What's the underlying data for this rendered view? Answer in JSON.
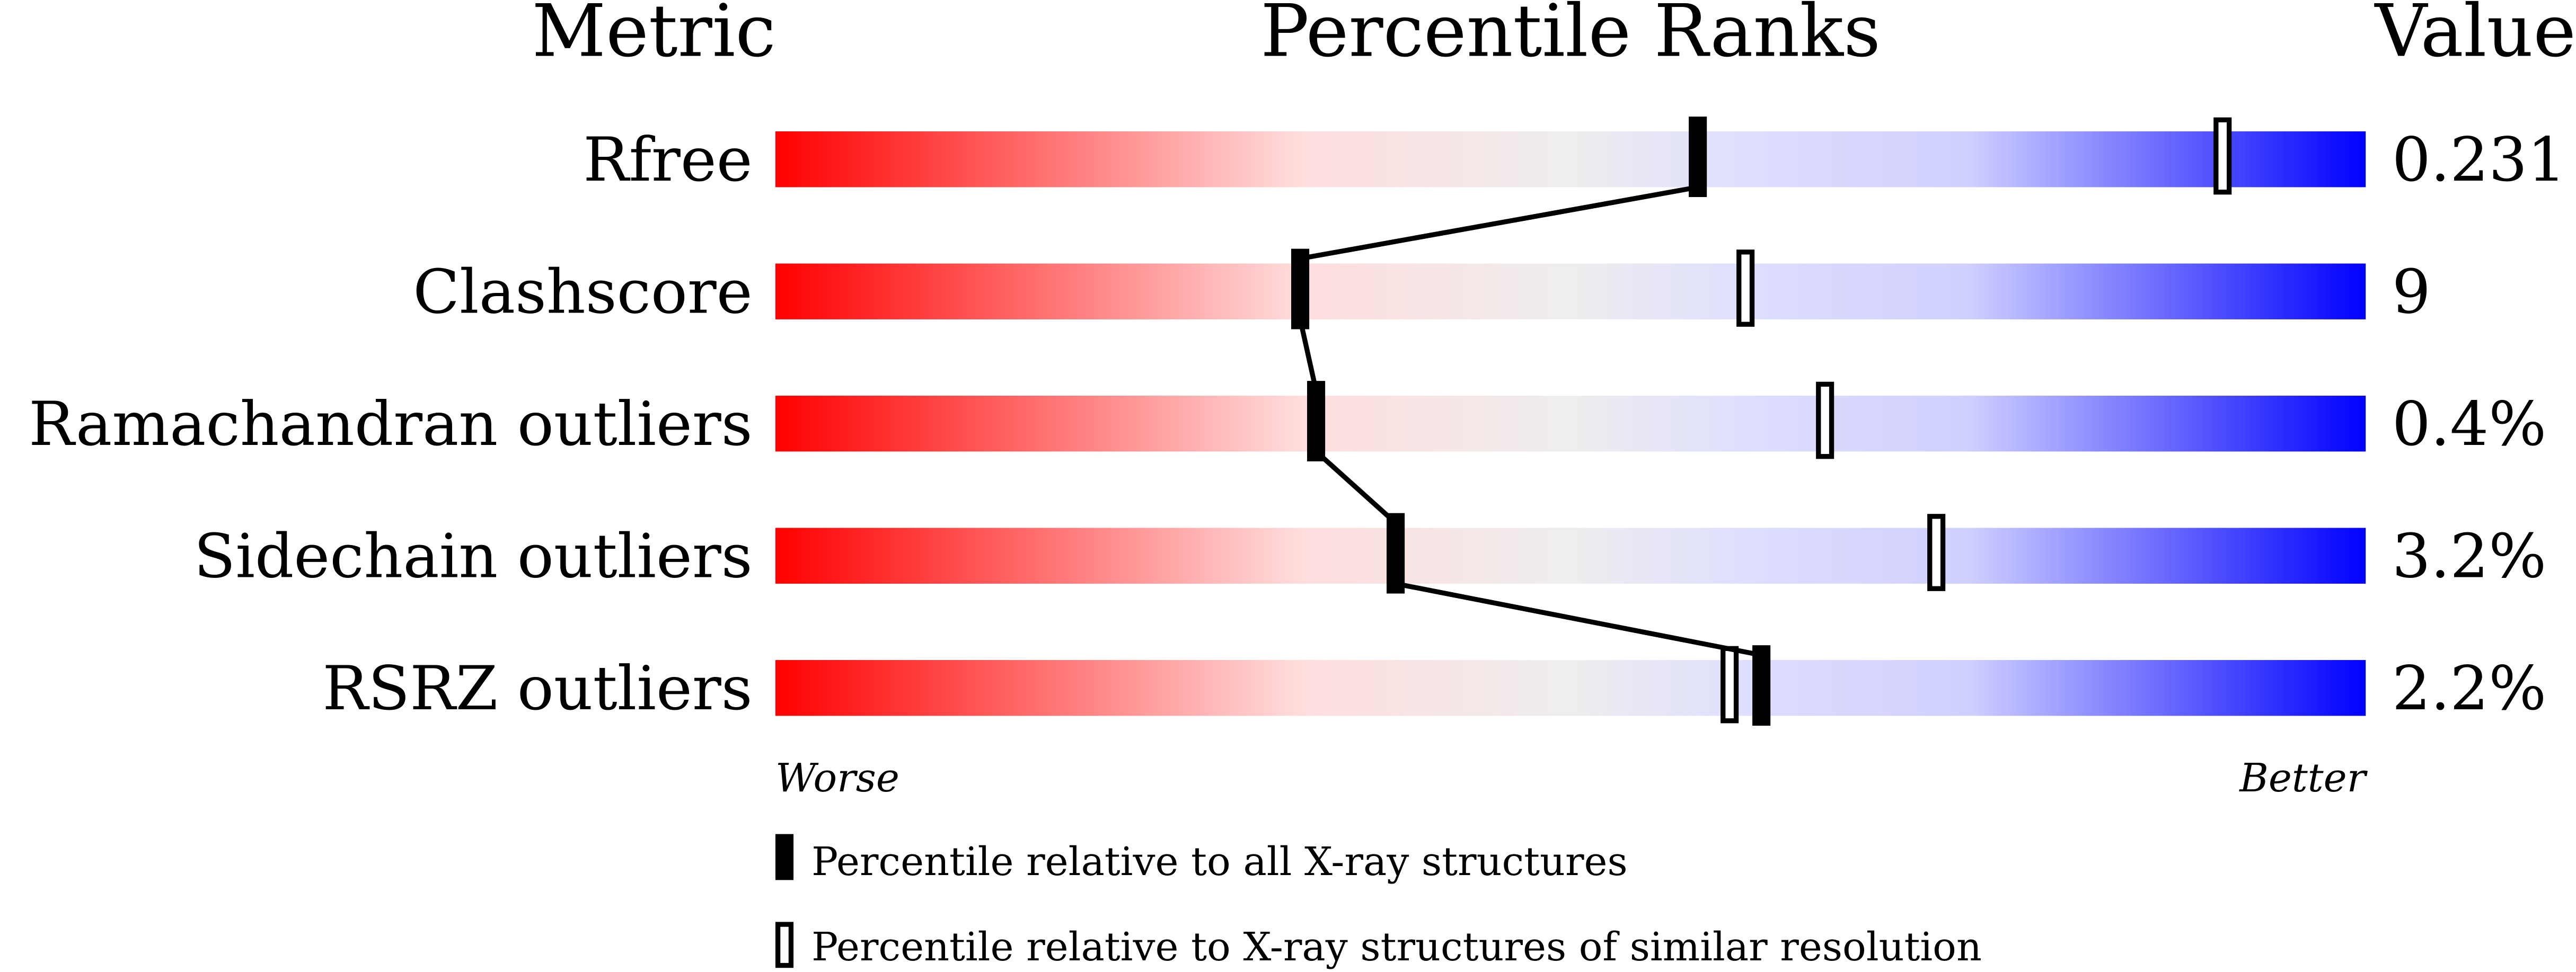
{
  "headers": {
    "metric": "Metric",
    "percentile": "Percentile Ranks",
    "value": "Value"
  },
  "chart_data": {
    "type": "percentile-slider",
    "xlim": [
      0,
      100
    ],
    "axis_left_label": "Worse",
    "axis_right_label": "Better",
    "gradient_colors": [
      "#ff0000",
      "#ffdddd",
      "#eeeeee",
      "#ddddff",
      "#0000ff"
    ],
    "rows": [
      {
        "metric": "Rfree",
        "value": "0.231",
        "percentile_all": 58,
        "percentile_similar": 91
      },
      {
        "metric": "Clashscore",
        "value": "9",
        "percentile_all": 33,
        "percentile_similar": 61
      },
      {
        "metric": "Ramachandran outliers",
        "value": "0.4%",
        "percentile_all": 34,
        "percentile_similar": 66
      },
      {
        "metric": "Sidechain outliers",
        "value": "3.2%",
        "percentile_all": 39,
        "percentile_similar": 73
      },
      {
        "metric": "RSRZ outliers",
        "value": "2.2%",
        "percentile_all": 62,
        "percentile_similar": 60
      }
    ],
    "legend": [
      {
        "marker": "filled",
        "label": "Percentile relative to all X-ray structures"
      },
      {
        "marker": "open",
        "label": "Percentile relative to X-ray structures of similar resolution"
      }
    ]
  }
}
